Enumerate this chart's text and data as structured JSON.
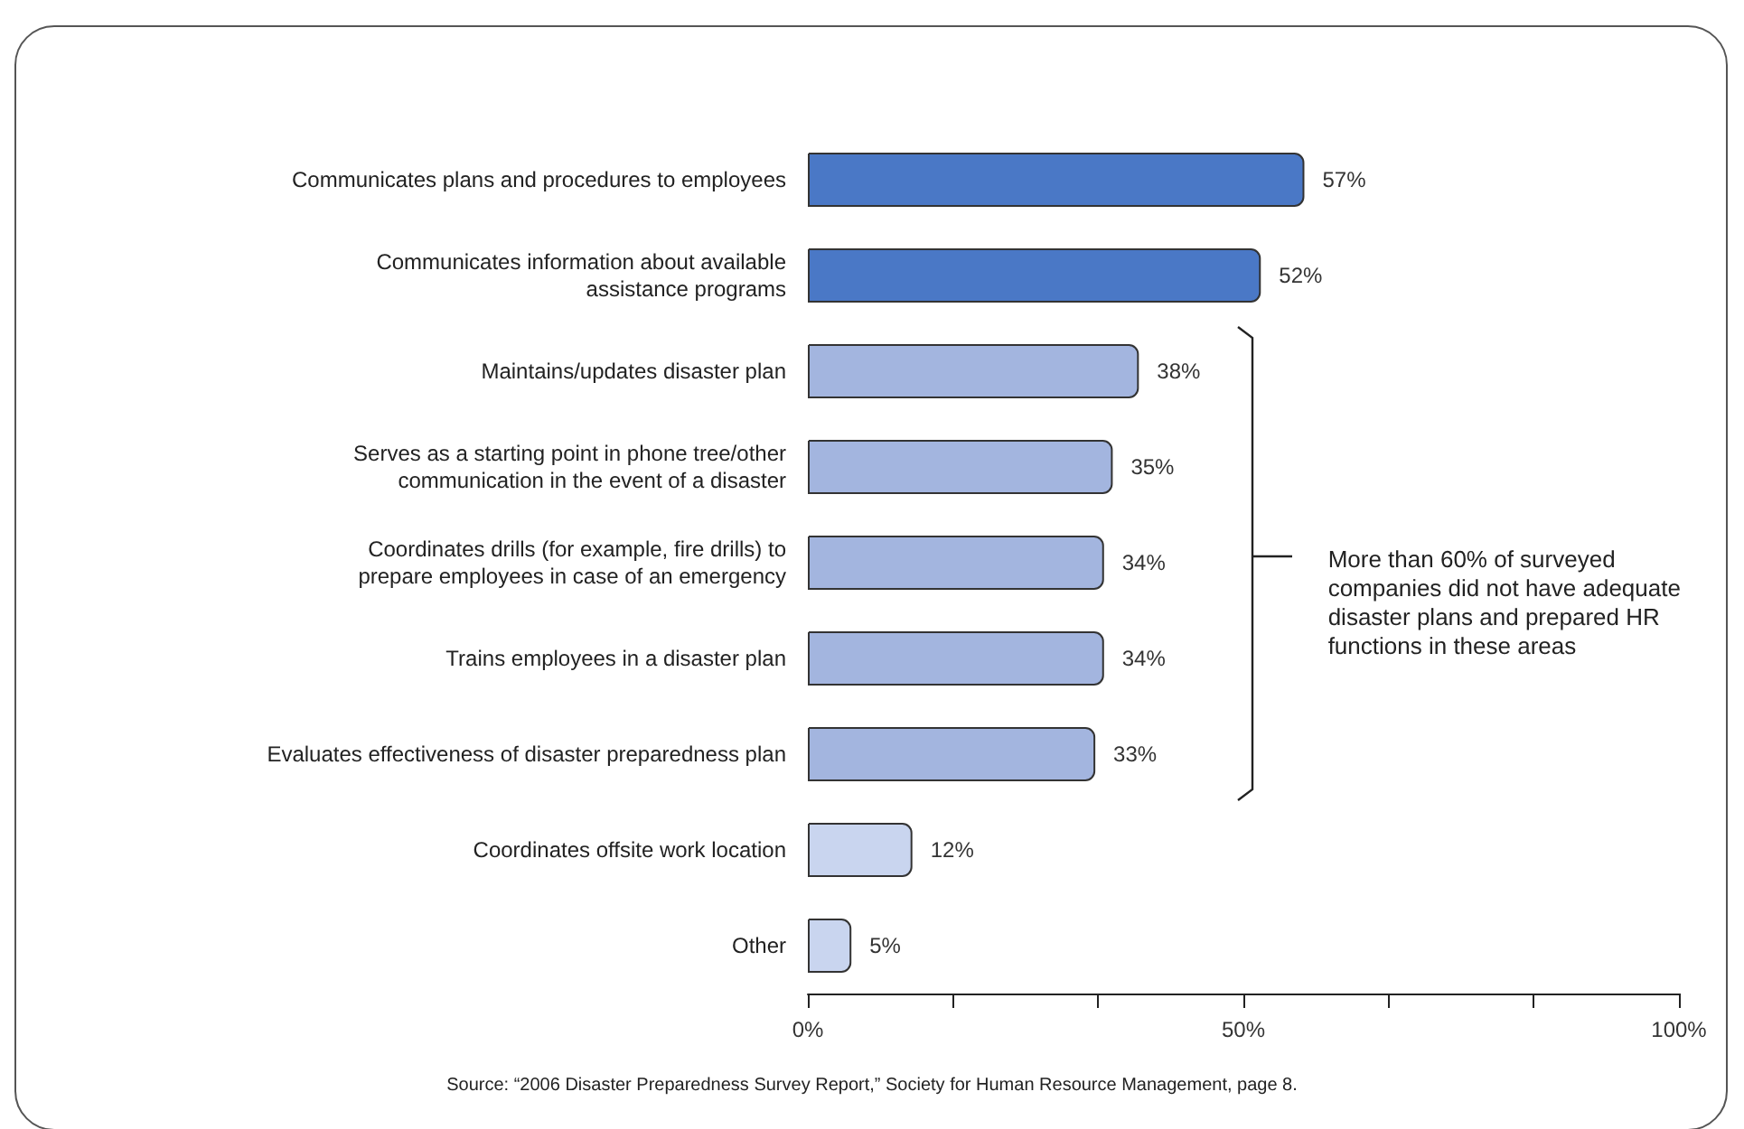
{
  "chart_data": {
    "type": "bar",
    "orientation": "horizontal",
    "categories": [
      "Communicates plans and procedures to employees",
      "Communicates information about available\nassistance programs",
      "Maintains/updates disaster plan",
      "Serves as a starting point in phone tree/other\ncommunication in the event of a disaster",
      "Coordinates drills (for example, fire drills) to\nprepare employees in case of an emergency",
      "Trains employees in a disaster plan",
      "Evaluates effectiveness of disaster preparedness plan",
      "Coordinates offsite work location",
      "Other"
    ],
    "values": [
      57,
      52,
      38,
      35,
      34,
      34,
      33,
      12,
      5
    ],
    "colors": [
      "#4a78c6",
      "#4a78c6",
      "#a3b5df",
      "#a3b5df",
      "#a3b5df",
      "#a3b5df",
      "#a3b5df",
      "#c9d5ef",
      "#c9d5ef"
    ],
    "value_labels": [
      "57%",
      "52%",
      "38%",
      "35%",
      "34%",
      "34%",
      "33%",
      "12%",
      "5%"
    ],
    "xlim": [
      0,
      100
    ],
    "xticks": [
      {
        "value": 0,
        "label": "0%"
      },
      {
        "value": 16.67,
        "label": null
      },
      {
        "value": 33.33,
        "label": null
      },
      {
        "value": 50,
        "label": "50%"
      },
      {
        "value": 66.67,
        "label": null
      },
      {
        "value": 83.33,
        "label": null
      },
      {
        "value": 100,
        "label": "100%"
      }
    ],
    "grid": false,
    "annotations": [
      "More than 60% of surveyed companies did not have adequate disaster plans and prepared HR functions in these areas",
      "Source: “2006 Disaster Preparedness Survey Report,” Society for Human Resource Management, page 8."
    ]
  }
}
